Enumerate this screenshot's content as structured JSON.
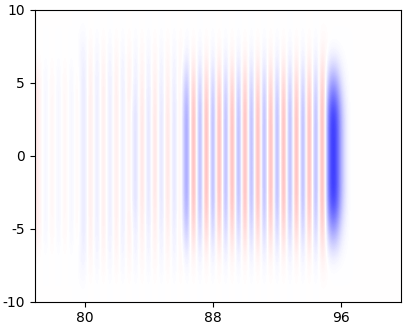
{
  "chart_data": {
    "type": "heatmap",
    "xlim": [
      76.9,
      99.7
    ],
    "ylim": [
      -10,
      10
    ],
    "xticks": [
      80,
      88,
      96
    ],
    "yticks": [
      -10,
      -5,
      0,
      5,
      10
    ],
    "cells_x_range": [
      77.0,
      99.8
    ],
    "cells_y_range": [
      -10,
      10
    ],
    "cells": [
      [
        0,
        0,
        0,
        0,
        0,
        0,
        0,
        0,
        0,
        0,
        0,
        0,
        0,
        0,
        0,
        0,
        0,
        0,
        0,
        0,
        0,
        0,
        0,
        0,
        0,
        0,
        0,
        0,
        0,
        0,
        0,
        0,
        0,
        0,
        0,
        0,
        0,
        0,
        0,
        0,
        0,
        0,
        0,
        0,
        0,
        0,
        0,
        0,
        0,
        0,
        0,
        0,
        0,
        0,
        0,
        0,
        0
      ],
      [
        0,
        0,
        0,
        0,
        0,
        0,
        0,
        -1,
        1,
        -1,
        1,
        -1,
        1,
        -1,
        1,
        -1,
        1,
        -1,
        1,
        -1,
        1,
        -1,
        1,
        -1,
        1,
        -1,
        1,
        -1,
        1,
        -1,
        1,
        -1,
        1,
        -1,
        1,
        -1,
        1,
        -1,
        1,
        -1,
        1,
        -1,
        1,
        -1,
        1,
        0,
        0,
        0,
        0,
        0,
        0,
        0,
        0,
        0,
        0,
        0,
        0
      ],
      [
        1,
        -1,
        1,
        -1,
        1,
        -1,
        1,
        -2,
        2,
        -2,
        2,
        -2,
        2,
        -2,
        2,
        -2,
        2,
        -2,
        2,
        -2,
        2,
        -2,
        2,
        -5,
        5,
        -5,
        5,
        -5,
        5,
        -5,
        5,
        -5,
        5,
        -5,
        5,
        -5,
        5,
        -5,
        5,
        -5,
        5,
        -5,
        5,
        -5,
        5,
        -4,
        -5,
        -1,
        0,
        0,
        0,
        0,
        0,
        0,
        0,
        0,
        0
      ],
      [
        1,
        -1,
        1,
        -1,
        1,
        -1,
        1,
        -2,
        2,
        -2,
        2,
        -2,
        2,
        -2,
        2,
        -3,
        3,
        -3,
        3,
        -3,
        3,
        -3,
        3,
        -8,
        8,
        -8,
        8,
        -8,
        8,
        -8,
        8,
        -8,
        8,
        -8,
        8,
        -8,
        8,
        -8,
        8,
        -8,
        8,
        -8,
        8,
        -8,
        8,
        -8,
        -10,
        -3,
        0,
        0,
        0,
        0,
        0,
        0,
        0,
        0,
        0
      ],
      [
        1,
        -1,
        1,
        -1,
        1,
        -1,
        1,
        -2,
        2,
        -2,
        2,
        -2,
        2,
        -2,
        2,
        -3,
        3,
        -3,
        3,
        -3,
        3,
        -3,
        3,
        -8,
        8,
        -8,
        8,
        -8,
        8,
        -8,
        8,
        -8,
        8,
        -8,
        8,
        -8,
        8,
        -8,
        8,
        -8,
        8,
        -8,
        8,
        -8,
        8,
        -8,
        -10,
        -3,
        0,
        0,
        0,
        0,
        0,
        0,
        0,
        0,
        0
      ],
      [
        1,
        -1,
        1,
        -1,
        1,
        -1,
        1,
        -2,
        2,
        -2,
        2,
        -2,
        2,
        -2,
        2,
        -3,
        3,
        -3,
        3,
        -3,
        3,
        -3,
        3,
        -8,
        8,
        -8,
        8,
        -8,
        8,
        -8,
        8,
        -8,
        8,
        -8,
        8,
        -8,
        8,
        -8,
        8,
        -8,
        8,
        -8,
        8,
        -8,
        8,
        -8,
        -10,
        -3,
        0,
        0,
        0,
        0,
        0,
        0,
        0,
        0,
        0
      ],
      [
        1,
        -1,
        1,
        -1,
        1,
        -1,
        1,
        -2,
        2,
        -2,
        2,
        -2,
        2,
        -2,
        2,
        -3,
        3,
        -3,
        3,
        -3,
        3,
        -3,
        3,
        -8,
        8,
        -8,
        8,
        -8,
        8,
        -8,
        8,
        -8,
        8,
        -8,
        8,
        -8,
        8,
        -8,
        8,
        -8,
        8,
        -8,
        8,
        -8,
        8,
        -8,
        -10,
        -3,
        0,
        0,
        0,
        0,
        0,
        0,
        0,
        0,
        0
      ],
      [
        1,
        -1,
        1,
        -1,
        1,
        -1,
        1,
        -2,
        2,
        -2,
        2,
        -2,
        2,
        -2,
        2,
        -2,
        2,
        -2,
        2,
        -2,
        2,
        -2,
        2,
        -5,
        5,
        -5,
        5,
        -5,
        5,
        -5,
        5,
        -5,
        5,
        -5,
        5,
        -5,
        5,
        -5,
        5,
        -5,
        5,
        -5,
        5,
        -5,
        5,
        -4,
        -5,
        -1,
        0,
        0,
        0,
        0,
        0,
        0,
        0,
        0,
        0
      ],
      [
        0,
        0,
        0,
        0,
        0,
        0,
        0,
        -1,
        1,
        -1,
        1,
        -1,
        1,
        -1,
        1,
        -1,
        1,
        -1,
        1,
        -1,
        1,
        -1,
        1,
        -1,
        1,
        -1,
        1,
        -1,
        1,
        -1,
        1,
        -1,
        1,
        -1,
        1,
        -1,
        1,
        -1,
        1,
        -1,
        1,
        -1,
        1,
        -1,
        1,
        0,
        0,
        0,
        0,
        0,
        0,
        0,
        0,
        0,
        0,
        0,
        0
      ],
      [
        0,
        0,
        0,
        0,
        0,
        0,
        0,
        0,
        0,
        0,
        0,
        0,
        0,
        0,
        0,
        0,
        0,
        0,
        0,
        0,
        0,
        0,
        0,
        0,
        0,
        0,
        0,
        0,
        0,
        0,
        0,
        0,
        0,
        0,
        0,
        0,
        0,
        0,
        0,
        0,
        0,
        0,
        0,
        0,
        0,
        0,
        0,
        0,
        0,
        0,
        0,
        0,
        0,
        0,
        0,
        0,
        0
      ]
    ]
  }
}
